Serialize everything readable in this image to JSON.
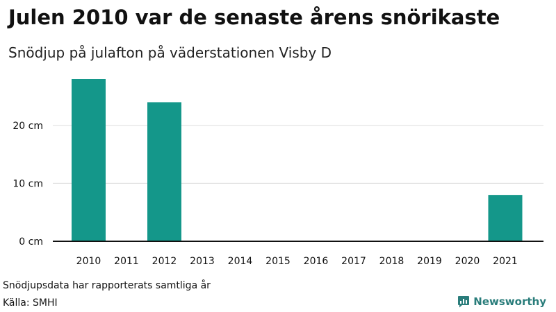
{
  "chart_data": {
    "type": "bar",
    "title": "Julen 2010 var de senaste årens snörikaste",
    "subtitle": "Snödjup på julafton på väderstationen Visby D",
    "categories": [
      "2010",
      "2011",
      "2012",
      "2013",
      "2014",
      "2015",
      "2016",
      "2017",
      "2018",
      "2019",
      "2020",
      "2021"
    ],
    "values": [
      28,
      0,
      24,
      0,
      0,
      0,
      0,
      0,
      0,
      0,
      0,
      8
    ],
    "xlabel": "",
    "ylabel": "",
    "ylim": [
      0,
      28
    ],
    "yticks": [
      0,
      10,
      20
    ],
    "ytick_labels": [
      "0 cm",
      "10 cm",
      "20 cm"
    ],
    "grid": true,
    "bar_color": "#14978a",
    "legend": "none"
  },
  "footnote": "Snödjupsdata har rapporterats samtliga år",
  "source": "Källa: SMHI",
  "brand": {
    "name": "Newsworthy",
    "icon": "newsworthy-logo-icon",
    "color": "#2a7d7b"
  }
}
